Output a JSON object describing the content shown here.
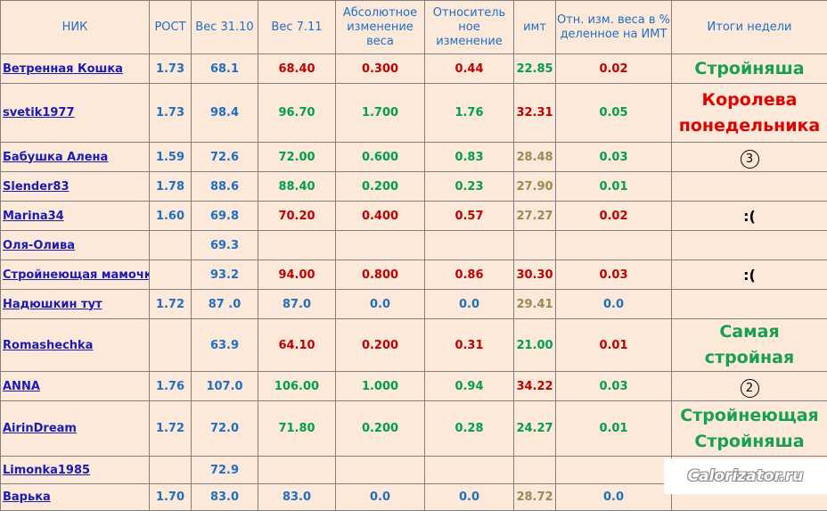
{
  "headers": [
    "НИК",
    "РОСТ",
    "Вес 31.10",
    "Вес 7.11",
    "Абсолютное изменение веса",
    "Относитель ное изменение",
    "имт",
    "Отн.  изм. веса в % деленное на ИМТ",
    "Итоги недели"
  ],
  "rows": [
    {
      "nick": "Ветренная Кошка",
      "height": "1.73",
      "w1": "68.1",
      "w2": "68.40",
      "w2c": "red",
      "abs": "0.300",
      "absc": "red",
      "rel": "0.44",
      "relc": "red",
      "bmi": "22.85",
      "bmic": "green",
      "ratio": "0.02",
      "ratioc": "red",
      "result": "Стройняша"
    },
    {
      "nick": "svetik1977",
      "height": "1.73",
      "w1": "98.4",
      "w2": "96.70",
      "w2c": "green",
      "abs": "1.700",
      "absc": "green",
      "rel": "1.76",
      "relc": "green",
      "bmi": "32.31",
      "bmic": "red",
      "ratio": "0.05",
      "ratioc": "green",
      "result": "Королева понедельника"
    },
    {
      "nick": "Бабушка Алена",
      "height": "1.59",
      "w1": "72.6",
      "w2": "72.00",
      "w2c": "green",
      "abs": "0.600",
      "absc": "green",
      "rel": "0.83",
      "relc": "green",
      "bmi": "28.48",
      "bmic": "olive",
      "ratio": "0.03",
      "ratioc": "green",
      "result": "3"
    },
    {
      "nick": "Slender83",
      "height": "1.78",
      "w1": "88.6",
      "w2": "88.40",
      "w2c": "green",
      "abs": "0.200",
      "absc": "green",
      "rel": "0.23",
      "relc": "green",
      "bmi": "27.90",
      "bmic": "olive",
      "ratio": "0.01",
      "ratioc": "green",
      "result": ""
    },
    {
      "nick": "Marina34",
      "height": "1.60",
      "w1": "69.8",
      "w2": "70.20",
      "w2c": "red",
      "abs": "0.400",
      "absc": "red",
      "rel": "0.57",
      "relc": "red",
      "bmi": "27.27",
      "bmic": "olive",
      "ratio": "0.02",
      "ratioc": "red",
      "result": ":("
    },
    {
      "nick": "Оля-Олива",
      "height": "",
      "w1": "69.3",
      "w2": "",
      "w2c": "blue",
      "abs": "",
      "absc": "blue",
      "rel": "",
      "relc": "blue",
      "bmi": "",
      "bmic": "blue",
      "ratio": "",
      "ratioc": "blue",
      "result": ""
    },
    {
      "nick": "Стройнеющая мамочка",
      "height": "",
      "w1": "93.2",
      "w2": "94.00",
      "w2c": "red",
      "abs": "0.800",
      "absc": "red",
      "rel": "0.86",
      "relc": "red",
      "bmi": "30.30",
      "bmic": "red",
      "ratio": "0.03",
      "ratioc": "red",
      "result": ":("
    },
    {
      "nick": "Надюшкин тут",
      "height": "1.72",
      "w1": "87 .0",
      "w2": "87.0",
      "w2c": "blue",
      "abs": "0.0",
      "absc": "blue",
      "rel": "0.0",
      "relc": "blue",
      "bmi": "29.41",
      "bmic": "olive",
      "ratio": "0.0",
      "ratioc": "blue",
      "result": ""
    },
    {
      "nick": "Romashechka",
      "height": "",
      "w1": "63.9",
      "w2": "64.10",
      "w2c": "red",
      "abs": "0.200",
      "absc": "red",
      "rel": "0.31",
      "relc": "red",
      "bmi": "21.00",
      "bmic": "green",
      "ratio": "0.01",
      "ratioc": "red",
      "result": "Самая стройная"
    },
    {
      "nick": "ANNA",
      "height": "1.76",
      "w1": "107.0",
      "w2": "106.00",
      "w2c": "green",
      "abs": "1.000",
      "absc": "green",
      "rel": "0.94",
      "relc": "green",
      "bmi": "34.22",
      "bmic": "red",
      "ratio": "0.03",
      "ratioc": "green",
      "result": "2"
    },
    {
      "nick": "AirinDream",
      "height": "1.72",
      "w1": "72.0",
      "w2": "71.80",
      "w2c": "green",
      "abs": "0.200",
      "absc": "green",
      "rel": "0.28",
      "relc": "green",
      "bmi": "24.27",
      "bmic": "green",
      "ratio": "0.01",
      "ratioc": "green",
      "result": "Стройнеющая Стройняша"
    },
    {
      "nick": "Limonka1985",
      "height": "",
      "w1": "72.9",
      "w2": "",
      "w2c": "blue",
      "abs": "",
      "absc": "blue",
      "rel": "",
      "relc": "blue",
      "bmi": "",
      "bmic": "blue",
      "ratio": "",
      "ratioc": "blue",
      "result": ""
    },
    {
      "nick": "Варька",
      "height": "1.70",
      "w1": "83.0",
      "w2": "83.0",
      "w2c": "blue",
      "abs": "0.0",
      "absc": "blue",
      "rel": "0.0",
      "relc": "blue",
      "bmi": "28.72",
      "bmic": "olive",
      "ratio": "0.0",
      "ratioc": "blue",
      "result": ""
    }
  ],
  "watermark": "Calorizator.ru"
}
